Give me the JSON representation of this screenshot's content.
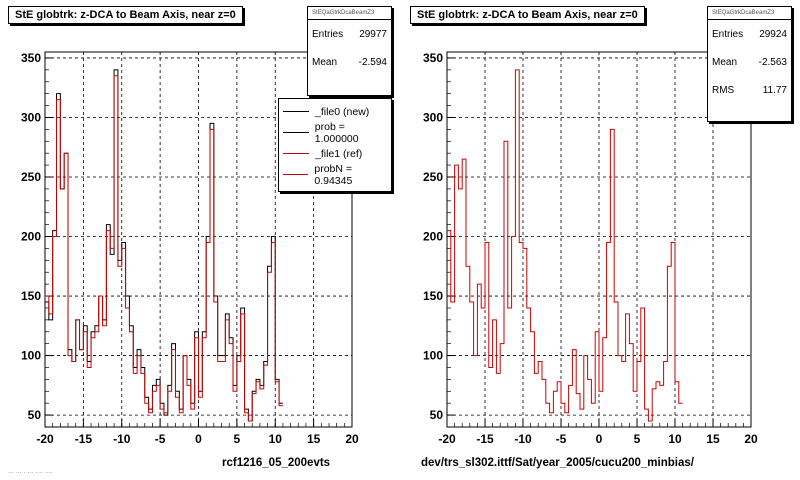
{
  "left_title": "StE globtrk: z-DCA to Beam Axis, near z=0",
  "right_title": "StE globtrk: z-DCA to Beam Axis, near z=0",
  "left_stats": {
    "name": "StEQaGtrkDcaBeamZ3",
    "entries_label": "Entries",
    "entries": "29977",
    "mean_label": "Mean",
    "mean": "-2.594"
  },
  "right_stats": {
    "name": "StEQaGtrkDcaBeamZ3",
    "entries_label": "Entries",
    "entries": "29924",
    "mean_label": "Mean",
    "mean": "-2.563",
    "rms_label": "RMS",
    "rms": "11.77"
  },
  "legend": {
    "items": [
      {
        "label": "_file0 (new)",
        "color": "#000000"
      },
      {
        "label": "prob = 1.000000",
        "color": "#000000"
      },
      {
        "label": "_file1 (ref)",
        "color": "#cc0000"
      },
      {
        "label": "probN = 0.94345",
        "color": "#cc0000"
      }
    ]
  },
  "left_caption": "rcf1216_05_200evts",
  "right_caption": "dev/trs_sl302.ittf/Sat/year_2005/cucu200_minbias/",
  "footer": "... ... . ... .... ....",
  "colors": {
    "new": "#000000",
    "ref": "#cc0000"
  },
  "chart_data": [
    {
      "type": "line",
      "style": "step-histogram",
      "title": "StE globtrk: z-DCA to Beam Axis, near z=0",
      "x_edges_start": -20,
      "bin_width": 0.5,
      "xlim": [
        -20,
        20
      ],
      "ylim": [
        40,
        355
      ],
      "xticks": [
        -20,
        -15,
        -10,
        -5,
        0,
        5,
        10,
        15,
        20
      ],
      "yticks": [
        50,
        100,
        150,
        200,
        250,
        300,
        350
      ],
      "grid": true,
      "legend_position": "top-right",
      "series": [
        {
          "name": "_file0 (new)",
          "color": "#000000",
          "values": [
            145,
            130,
            205,
            320,
            240,
            270,
            105,
            95,
            130,
            105,
            125,
            95,
            120,
            125,
            150,
            130,
            210,
            185,
            340,
            180,
            195,
            150,
            125,
            90,
            105,
            90,
            65,
            55,
            75,
            80,
            60,
            50,
            75,
            110,
            70,
            55,
            100,
            80,
            60,
            120,
            70,
            120,
            200,
            295,
            150,
            100,
            100,
            135,
            115,
            75,
            100,
            140,
            55,
            45,
            70,
            80,
            75,
            95,
            175,
            200,
            80,
            60
          ]
        },
        {
          "name": "_file1 (ref)",
          "color": "#cc0000",
          "values": [
            150,
            135,
            200,
            315,
            240,
            270,
            100,
            95,
            130,
            105,
            120,
            90,
            115,
            120,
            150,
            125,
            205,
            190,
            335,
            175,
            190,
            140,
            120,
            85,
            100,
            85,
            60,
            52,
            70,
            75,
            55,
            52,
            70,
            105,
            65,
            52,
            100,
            75,
            55,
            115,
            65,
            115,
            195,
            290,
            145,
            95,
            95,
            130,
            110,
            70,
            95,
            135,
            52,
            45,
            68,
            78,
            72,
            92,
            170,
            195,
            78,
            58
          ]
        }
      ]
    },
    {
      "type": "line",
      "style": "step-histogram",
      "title": "StE globtrk: z-DCA to Beam Axis, near z=0",
      "x_edges_start": -20,
      "bin_width": 0.5,
      "xlim": [
        -20,
        20
      ],
      "ylim": [
        40,
        355
      ],
      "xticks": [
        -20,
        -15,
        -10,
        -5,
        0,
        5,
        10,
        15,
        20
      ],
      "yticks": [
        50,
        100,
        150,
        200,
        250,
        300,
        350
      ],
      "grid": true,
      "series": [
        {
          "name": "_file1 (ref)",
          "color": "#cc0000",
          "values": [
            205,
            145,
            260,
            240,
            265,
            175,
            145,
            100,
            160,
            140,
            195,
            90,
            130,
            85,
            110,
            280,
            140,
            200,
            340,
            195,
            190,
            140,
            120,
            85,
            95,
            80,
            60,
            52,
            70,
            78,
            60,
            52,
            75,
            105,
            68,
            55,
            100,
            80,
            60,
            120,
            70,
            115,
            195,
            290,
            145,
            100,
            95,
            135,
            110,
            70,
            95,
            140,
            55,
            45,
            72,
            78,
            75,
            95,
            175,
            195,
            78,
            60
          ]
        }
      ]
    }
  ]
}
